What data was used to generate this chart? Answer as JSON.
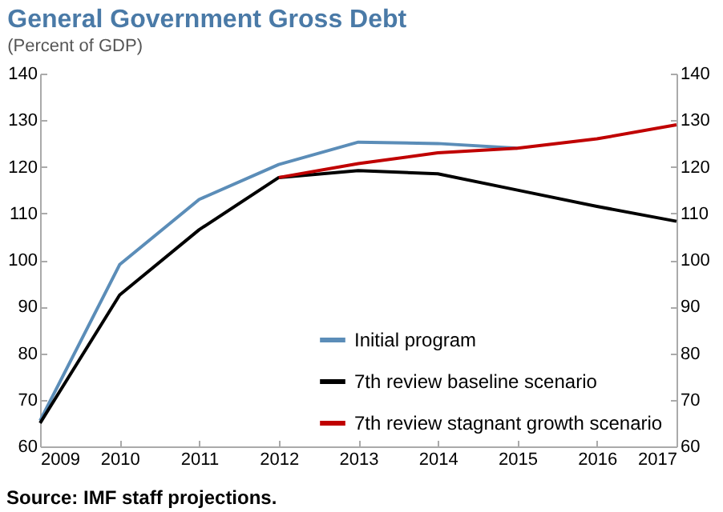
{
  "chart_data": {
    "type": "line",
    "title": "General Government Gross Debt",
    "subtitle": "(Percent of GDP)",
    "x": [
      2009,
      2010,
      2011,
      2012,
      2013,
      2014,
      2015,
      2016,
      2017
    ],
    "series": [
      {
        "name": "Initial program",
        "color": "#5b8db8",
        "values": [
          65.5,
          99,
          113,
          120.5,
          125.3,
          125,
          124,
          null,
          null
        ]
      },
      {
        "name": "7th review baseline scenario",
        "color": "#000000",
        "values": [
          65,
          92.5,
          106.5,
          117.7,
          119.2,
          118.5,
          115,
          111.5,
          108.3
        ]
      },
      {
        "name": "7th review stagnant growth scenario",
        "color": "#c00000",
        "values": [
          null,
          null,
          null,
          117.7,
          120.7,
          123,
          124,
          126,
          129
        ]
      }
    ],
    "xlim": [
      2009,
      2017
    ],
    "xticks": [
      2009,
      2010,
      2011,
      2012,
      2013,
      2014,
      2015,
      2016,
      2017
    ],
    "ylim": [
      60,
      140
    ],
    "yticks": [
      60,
      70,
      80,
      90,
      100,
      110,
      120,
      130,
      140
    ],
    "y2lim": [
      60,
      140
    ],
    "y2ticks": [
      60,
      70,
      80,
      90,
      100,
      110,
      120,
      130,
      140
    ],
    "legend": "bottom right",
    "grid": false,
    "annotations": [
      "Source: IMF staff projections."
    ]
  }
}
